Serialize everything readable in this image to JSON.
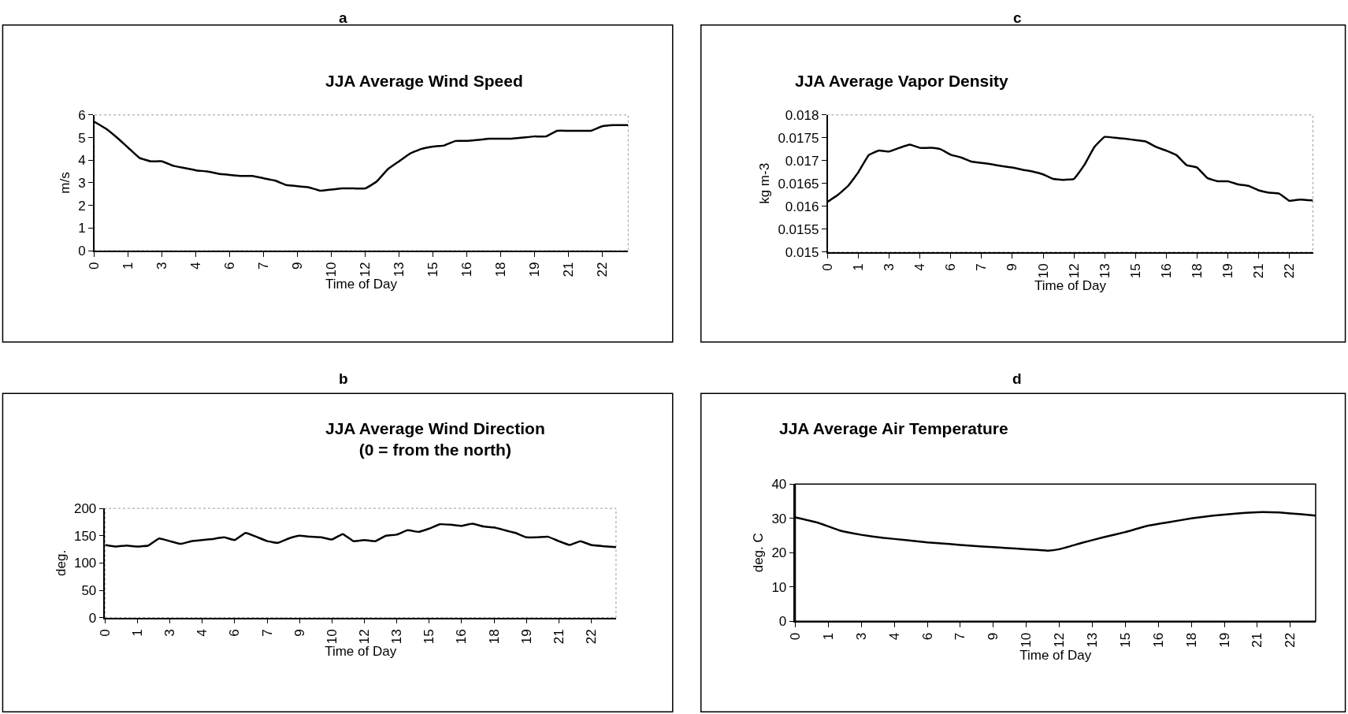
{
  "chart_data": [
    {
      "type": "line",
      "title": "JJA Average Wind Speed",
      "annotations": [
        "a"
      ],
      "xlabel": "Time of Day",
      "ylabel": "m/s",
      "x": [
        0,
        0.5,
        1,
        1.5,
        2,
        2.5,
        3,
        3.5,
        4,
        4.5,
        5,
        5.5,
        6,
        6.5,
        7,
        7.5,
        8,
        8.5,
        9,
        9.5,
        10,
        10.5,
        11,
        11.5,
        12,
        12.5,
        13,
        13.5,
        14,
        14.5,
        15,
        15.5,
        16,
        16.5,
        17,
        17.5,
        18,
        18.5,
        19,
        19.5,
        20,
        20.5,
        21,
        21.5,
        22,
        22.5,
        23,
        23.65
      ],
      "series": [
        {
          "color": "#000000",
          "values": [
            5.7,
            5.4,
            5.0,
            4.55,
            4.1,
            3.95,
            3.95,
            3.75,
            3.65,
            3.55,
            3.5,
            3.4,
            3.35,
            3.3,
            3.3,
            3.2,
            3.1,
            2.9,
            2.85,
            2.8,
            2.65,
            2.7,
            2.75,
            2.75,
            2.75,
            3.05,
            3.6,
            3.95,
            4.3,
            4.5,
            4.6,
            4.65,
            4.85,
            4.85,
            4.9,
            4.95,
            4.95,
            4.95,
            5.0,
            5.05,
            5.05,
            5.3,
            5.3,
            5.3,
            5.3,
            5.5,
            5.55,
            5.55
          ]
        }
      ],
      "xlim": [
        0,
        23.65
      ],
      "xticks": [
        0,
        {
          "value": 1.5,
          "label": "1"
        },
        3,
        {
          "value": 4.5,
          "label": "4"
        },
        6,
        {
          "value": 7.5,
          "label": "7"
        },
        9,
        {
          "value": 10.5,
          "label": "10"
        },
        12,
        {
          "value": 13.5,
          "label": "13"
        },
        15,
        {
          "value": 16.5,
          "label": "16"
        },
        18,
        {
          "value": 19.5,
          "label": "19"
        },
        21,
        {
          "value": 22.5,
          "label": "22"
        }
      ],
      "ylim": [
        0,
        6
      ],
      "yticks": [
        0,
        1,
        2,
        3,
        4,
        5,
        6
      ],
      "grid": false
    },
    {
      "type": "line",
      "title": "JJA Average Vapor Density",
      "annotations": [
        "c"
      ],
      "xlabel": "Time of Day",
      "ylabel": "kg m-3",
      "x": [
        0,
        0.5,
        1,
        1.5,
        2,
        2.5,
        3,
        3.5,
        4,
        4.5,
        5,
        5.5,
        6,
        6.5,
        7,
        7.5,
        8,
        8.5,
        9,
        9.5,
        10,
        10.5,
        11,
        11.5,
        12,
        12.5,
        13,
        13.5,
        14,
        14.5,
        15,
        15.5,
        16,
        16.5,
        17,
        17.5,
        18,
        18.5,
        19,
        19.5,
        20,
        20.5,
        21,
        21.5,
        22,
        22.5,
        23,
        23.65
      ],
      "series": [
        {
          "color": "#000000",
          "values": [
            0.0161,
            0.01625,
            0.01645,
            0.01675,
            0.01712,
            0.01722,
            0.0172,
            0.01728,
            0.01735,
            0.01728,
            0.01728,
            0.01725,
            0.01713,
            0.01707,
            0.01698,
            0.01695,
            0.01692,
            0.01688,
            0.01685,
            0.0168,
            0.01676,
            0.0167,
            0.0166,
            0.01658,
            0.0166,
            0.0169,
            0.0173,
            0.01752,
            0.0175,
            0.01748,
            0.01745,
            0.01742,
            0.0173,
            0.01722,
            0.01712,
            0.0169,
            0.01685,
            0.01662,
            0.01655,
            0.01655,
            0.01648,
            0.01645,
            0.01635,
            0.0163,
            0.01628,
            0.01612,
            0.01615,
            0.01613
          ]
        }
      ],
      "xlim": [
        0,
        23.65
      ],
      "xticks": [
        0,
        {
          "value": 1.5,
          "label": "1"
        },
        3,
        {
          "value": 4.5,
          "label": "4"
        },
        6,
        {
          "value": 7.5,
          "label": "7"
        },
        9,
        {
          "value": 10.5,
          "label": "10"
        },
        12,
        {
          "value": 13.5,
          "label": "13"
        },
        15,
        {
          "value": 16.5,
          "label": "16"
        },
        18,
        {
          "value": 19.5,
          "label": "19"
        },
        21,
        {
          "value": 22.5,
          "label": "22"
        }
      ],
      "ylim": [
        0.015,
        0.018
      ],
      "yticks": [
        0.015,
        0.0155,
        0.016,
        0.0165,
        0.017,
        0.0175,
        0.018
      ],
      "grid": false
    },
    {
      "type": "line",
      "title": "JJA Average Wind Direction\n(0 = from the north)",
      "annotations": [
        "b"
      ],
      "xlabel": "Time of Day",
      "ylabel": "deg.",
      "x": [
        0,
        0.5,
        1,
        1.5,
        2,
        2.5,
        3,
        3.5,
        4,
        4.5,
        5,
        5.5,
        6,
        6.5,
        7,
        7.5,
        8,
        8.5,
        9,
        9.5,
        10,
        10.5,
        11,
        11.5,
        12,
        12.5,
        13,
        13.5,
        14,
        14.5,
        15,
        15.5,
        16,
        16.5,
        17,
        17.5,
        18,
        18.5,
        19,
        19.5,
        20,
        20.5,
        21,
        21.5,
        22,
        22.5,
        23,
        23.65
      ],
      "series": [
        {
          "color": "#000000",
          "values": [
            133,
            130,
            132,
            130,
            132,
            145,
            140,
            135,
            140,
            142,
            144,
            147,
            142,
            155,
            148,
            140,
            137,
            145,
            150,
            148,
            147,
            143,
            153,
            140,
            142,
            140,
            150,
            152,
            160,
            157,
            163,
            171,
            170,
            168,
            172,
            167,
            165,
            160,
            155,
            147,
            147,
            148,
            140,
            133,
            140,
            133,
            131,
            129
          ]
        }
      ],
      "xlim": [
        0,
        23.65
      ],
      "xticks": [
        0,
        {
          "value": 1.5,
          "label": "1"
        },
        3,
        {
          "value": 4.5,
          "label": "4"
        },
        6,
        {
          "value": 7.5,
          "label": "7"
        },
        9,
        {
          "value": 10.5,
          "label": "10"
        },
        12,
        {
          "value": 13.5,
          "label": "13"
        },
        15,
        {
          "value": 16.5,
          "label": "16"
        },
        18,
        {
          "value": 19.5,
          "label": "19"
        },
        21,
        {
          "value": 22.5,
          "label": "22"
        }
      ],
      "ylim": [
        0,
        200
      ],
      "yticks": [
        0,
        50,
        100,
        150,
        200
      ],
      "grid": false
    },
    {
      "type": "line",
      "title": "JJA Average Air Temperature",
      "annotations": [
        "d"
      ],
      "xlabel": "Time of Day",
      "ylabel": "deg. C",
      "x": [
        0,
        1,
        2,
        3,
        4,
        5,
        6,
        7,
        8,
        9,
        10,
        11,
        11.5,
        12,
        13,
        14,
        15,
        16,
        17,
        18,
        19,
        20,
        21,
        22,
        23,
        23.65
      ],
      "series": [
        {
          "color": "#000000",
          "values": [
            30.3,
            28.8,
            26.5,
            25.2,
            24.3,
            23.7,
            23.0,
            22.5,
            22.0,
            21.6,
            21.2,
            20.8,
            20.6,
            21.0,
            22.8,
            24.5,
            26.0,
            27.8,
            28.9,
            30.0,
            30.8,
            31.4,
            31.8,
            31.7,
            31.2,
            30.8
          ]
        }
      ],
      "xlim": [
        0,
        23.65
      ],
      "xticks": [
        0,
        {
          "value": 1.5,
          "label": "1"
        },
        3,
        {
          "value": 4.5,
          "label": "4"
        },
        6,
        {
          "value": 7.5,
          "label": "7"
        },
        9,
        {
          "value": 10.5,
          "label": "10"
        },
        12,
        {
          "value": 13.5,
          "label": "13"
        },
        15,
        {
          "value": 16.5,
          "label": "16"
        },
        18,
        {
          "value": 19.5,
          "label": "19"
        },
        21,
        {
          "value": 22.5,
          "label": "22"
        }
      ],
      "ylim": [
        0,
        40
      ],
      "yticks": [
        0,
        10,
        20,
        30,
        40
      ],
      "grid": false
    }
  ]
}
